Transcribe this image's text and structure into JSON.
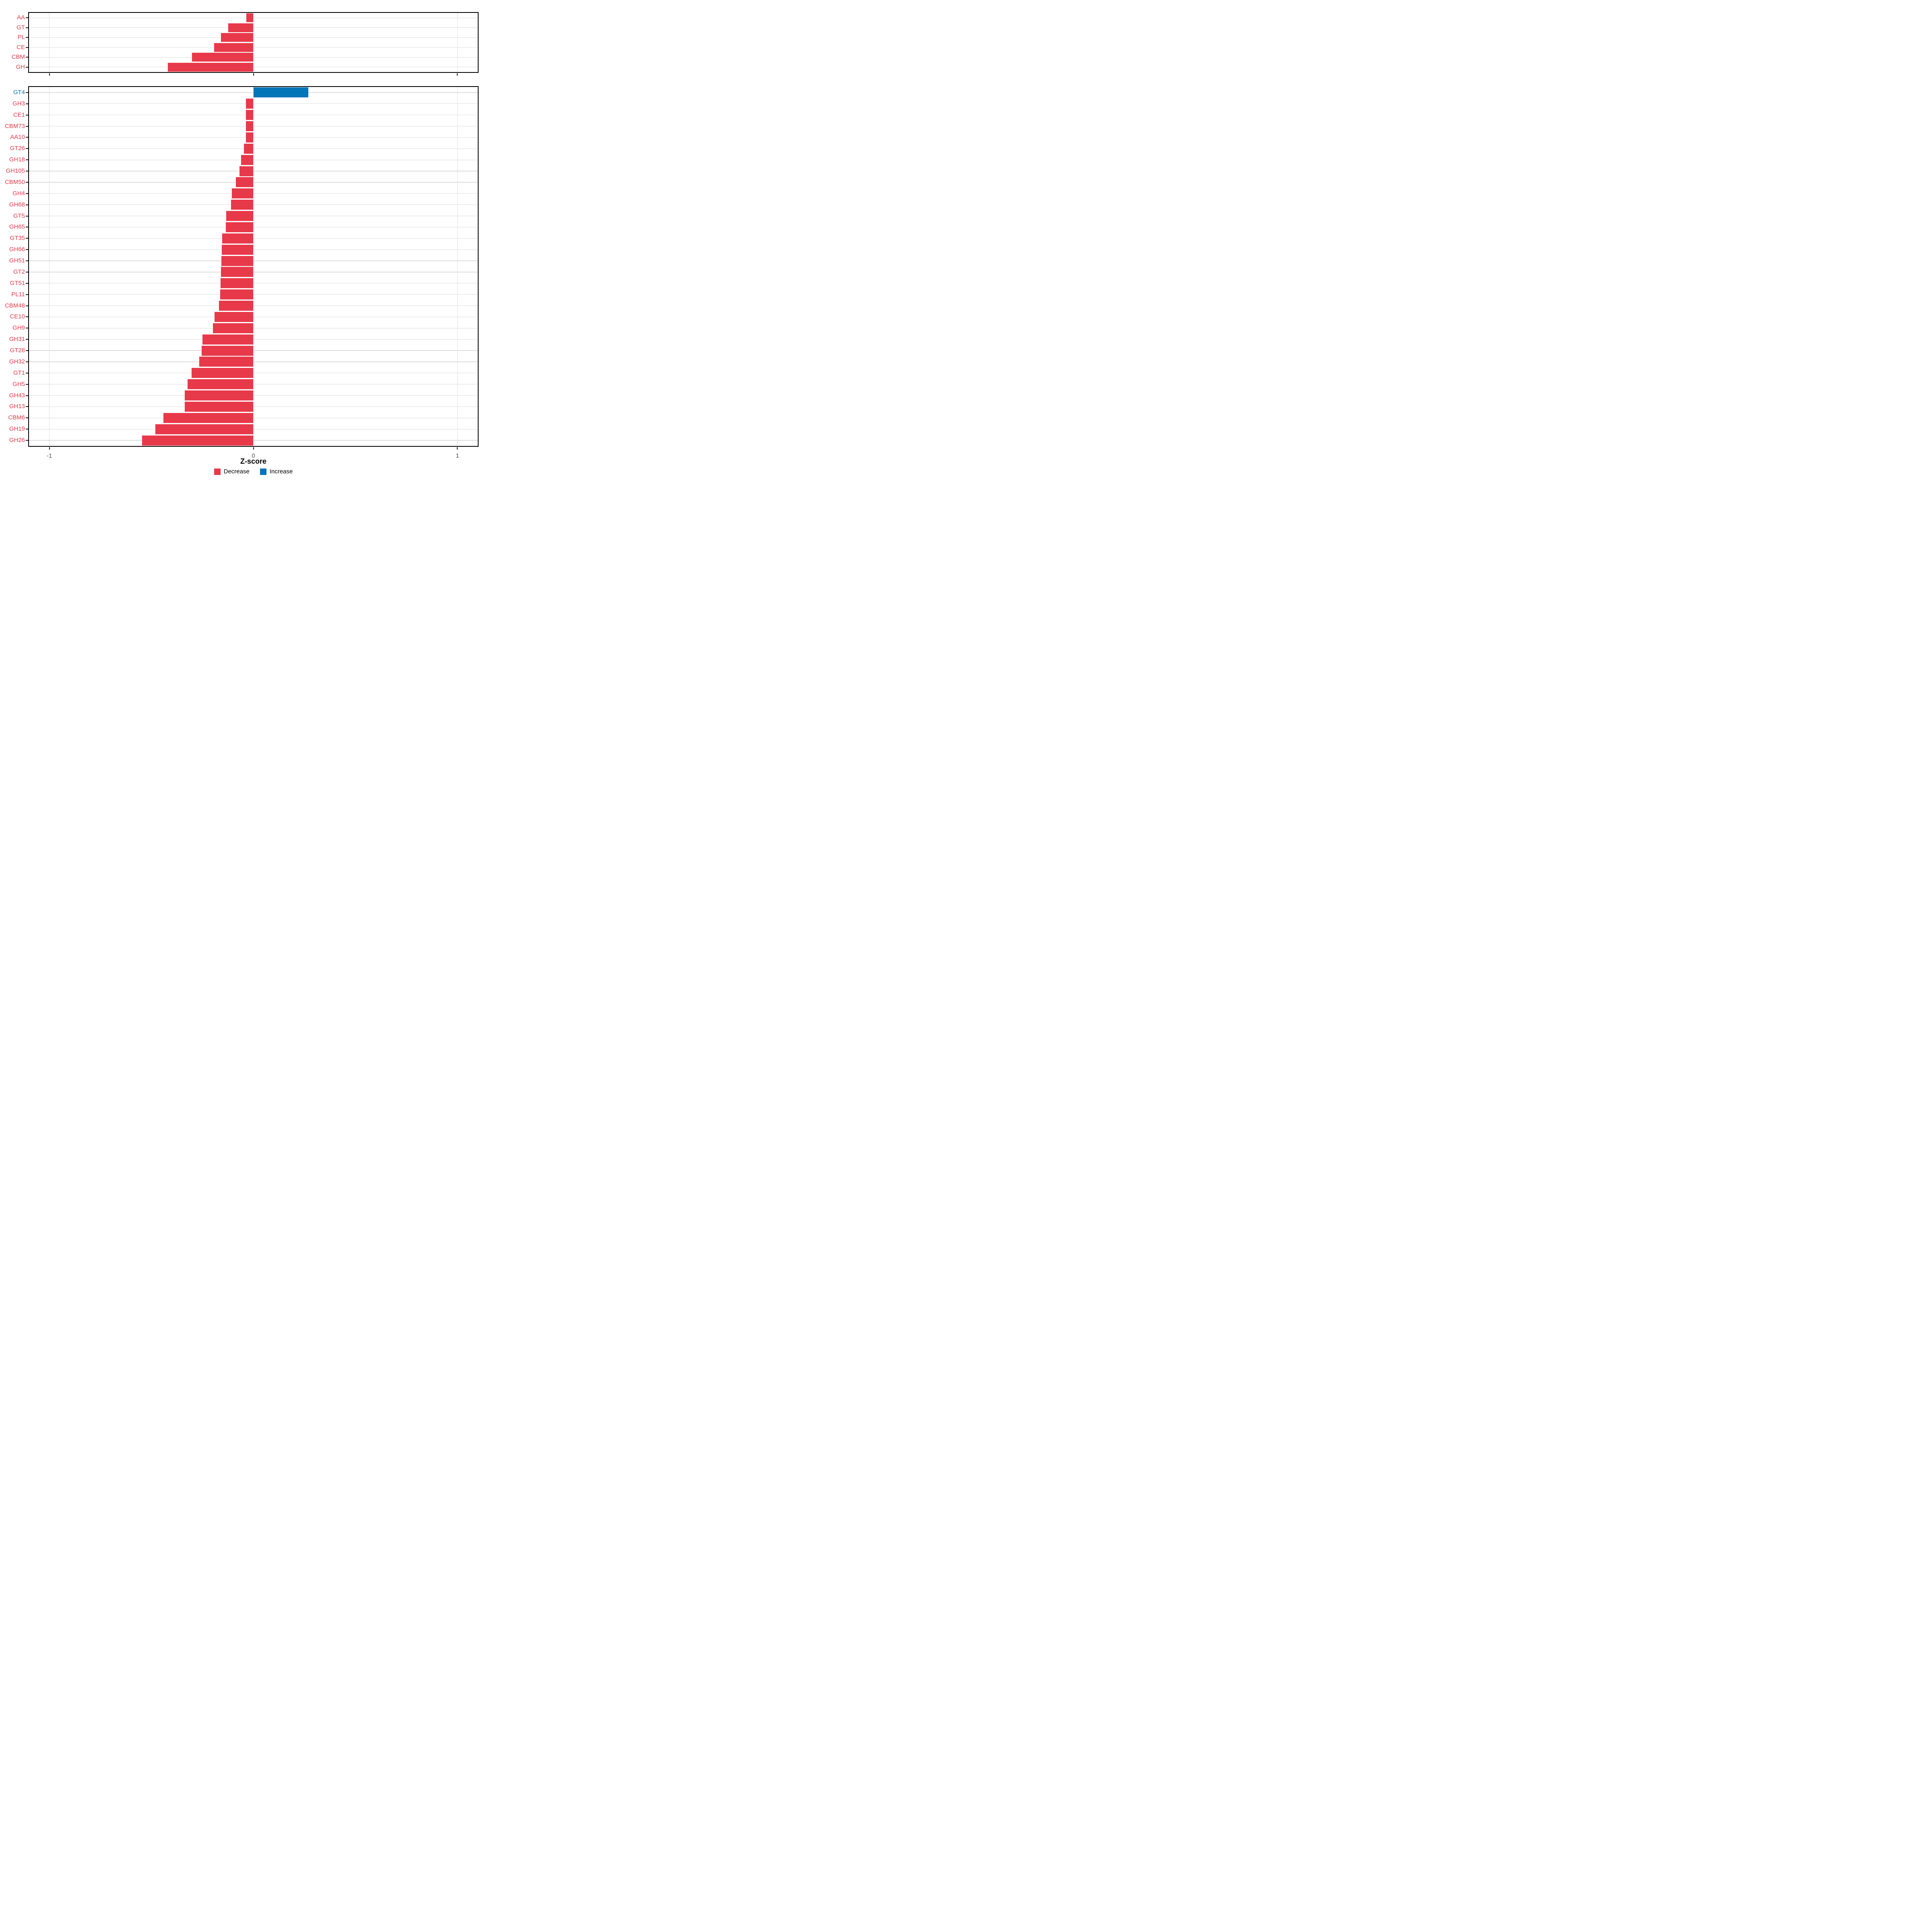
{
  "chart_data": {
    "type": "bar",
    "orientation": "horizontal",
    "xlabel": "Z-score",
    "xlim": [
      -1.1,
      1.1
    ],
    "x_ticks": [
      -1,
      0,
      1
    ],
    "x_tick_labels": [
      "-1",
      "0",
      "1"
    ],
    "grid": "major",
    "legend_position": "bottom",
    "colors": {
      "decrease": "#E8394A",
      "increase": "#0274B8",
      "gridline": "#DDDDDD",
      "axis_text": "#4D4D4D",
      "panel_border": "#000000",
      "tick_mark": "#1A1A1A"
    },
    "legend": [
      {
        "key": "decrease",
        "label": "Decrease"
      },
      {
        "key": "increase",
        "label": "Increase"
      }
    ],
    "panels": [
      {
        "categories": [
          "AA",
          "GT",
          "PL",
          "CE",
          "CBM",
          "GH"
        ],
        "values": [
          -0.035,
          -0.124,
          -0.158,
          -0.193,
          -0.301,
          -0.419
        ]
      },
      {
        "categories": [
          "GT4",
          "GH3",
          "CE1",
          "CBM73",
          "AA10",
          "GT26",
          "GH18",
          "GH105",
          "CBM50",
          "GH4",
          "GH68",
          "GT5",
          "GH65",
          "GT35",
          "GH66",
          "GH51",
          "GT2",
          "GT51",
          "PL11",
          "CBM48",
          "CE10",
          "GH9",
          "GH31",
          "GT28",
          "GH32",
          "GT1",
          "GH5",
          "GH43",
          "GH13",
          "CBM6",
          "GH19",
          "GH26"
        ],
        "values": [
          0.27,
          -0.036,
          -0.037,
          -0.037,
          -0.037,
          -0.046,
          -0.061,
          -0.069,
          -0.086,
          -0.106,
          -0.109,
          -0.133,
          -0.135,
          -0.153,
          -0.155,
          -0.157,
          -0.159,
          -0.16,
          -0.162,
          -0.169,
          -0.191,
          -0.198,
          -0.249,
          -0.254,
          -0.265,
          -0.303,
          -0.322,
          -0.336,
          -0.337,
          -0.441,
          -0.48,
          -0.545
        ]
      }
    ]
  }
}
